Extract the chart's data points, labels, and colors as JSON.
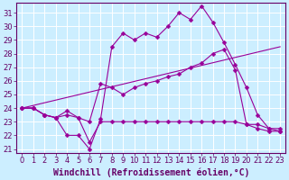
{
  "xlabel": "Windchill (Refroidissement éolien,°C)",
  "bg_color": "#cceeff",
  "line_color": "#990099",
  "grid_color": "#ffffff",
  "xlim": [
    -0.5,
    23.5
  ],
  "ylim": [
    20.7,
    31.7
  ],
  "yticks": [
    21,
    22,
    23,
    24,
    25,
    26,
    27,
    28,
    29,
    30,
    31
  ],
  "xticks": [
    0,
    1,
    2,
    3,
    4,
    5,
    6,
    7,
    8,
    9,
    10,
    11,
    12,
    13,
    14,
    15,
    16,
    17,
    18,
    19,
    20,
    21,
    22,
    23
  ],
  "lines": [
    {
      "x": [
        0,
        1,
        2,
        3,
        4,
        5,
        6,
        7,
        8,
        9,
        10,
        11,
        12,
        13,
        14,
        15,
        16,
        17,
        18,
        19,
        20,
        21,
        22,
        23
      ],
      "y": [
        24,
        24,
        23.5,
        23.3,
        22.0,
        22.0,
        21.0,
        23.2,
        28.5,
        29.5,
        29.0,
        29.5,
        29.2,
        30.0,
        31.0,
        30.5,
        31.5,
        30.3,
        28.8,
        27.2,
        25.5,
        23.5,
        22.5,
        22.5
      ],
      "marker": "D",
      "markersize": 2.5
    },
    {
      "x": [
        0,
        23
      ],
      "y": [
        24,
        28.5
      ],
      "marker": null,
      "markersize": 0
    },
    {
      "x": [
        0,
        1,
        2,
        3,
        4,
        5,
        6,
        7,
        8,
        9,
        10,
        11,
        12,
        13,
        14,
        15,
        16,
        17,
        18,
        19,
        20,
        21,
        22,
        23
      ],
      "y": [
        24,
        24,
        23.5,
        23.3,
        23.8,
        23.3,
        23.0,
        25.8,
        25.5,
        25.0,
        25.5,
        25.8,
        26.0,
        26.3,
        26.5,
        27.0,
        27.3,
        28.0,
        28.3,
        26.8,
        22.8,
        22.5,
        22.3,
        22.3
      ],
      "marker": "D",
      "markersize": 2.5
    },
    {
      "x": [
        0,
        1,
        2,
        3,
        4,
        5,
        6,
        7,
        8,
        9,
        10,
        11,
        12,
        13,
        14,
        15,
        16,
        17,
        18,
        19,
        20,
        21,
        22,
        23
      ],
      "y": [
        24,
        24,
        23.5,
        23.3,
        23.5,
        23.3,
        21.5,
        23.0,
        23.0,
        23.0,
        23.0,
        23.0,
        23.0,
        23.0,
        23.0,
        23.0,
        23.0,
        23.0,
        23.0,
        23.0,
        22.8,
        22.8,
        22.5,
        22.3
      ],
      "marker": "D",
      "markersize": 2.5
    }
  ],
  "xlabel_fontsize": 7,
  "tick_fontsize": 6,
  "tick_color": "#660066",
  "axis_color": "#660066"
}
